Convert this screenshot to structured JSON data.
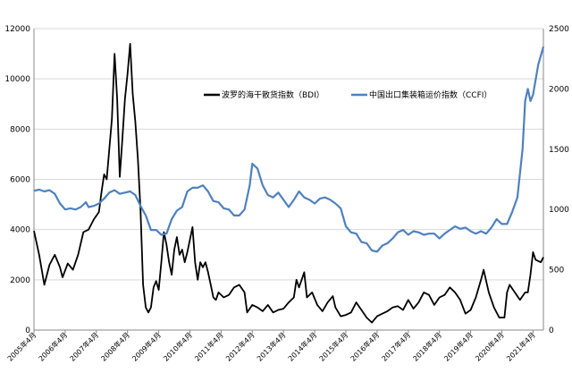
{
  "chart_data": {
    "type": "line",
    "title": "",
    "y_left": {
      "min": 0,
      "max": 12000,
      "ticks": [
        0,
        2000,
        4000,
        6000,
        8000,
        10000,
        12000
      ]
    },
    "y_right": {
      "min": 0,
      "max": 2500,
      "ticks": [
        0,
        500,
        1000,
        1500,
        2000,
        2500
      ]
    },
    "x_range": [
      "2005-04",
      "2021-08"
    ],
    "x_ticks": [
      "2005年4月",
      "2006年4月",
      "2007年4月",
      "2008年4月",
      "2009年4月",
      "2010年4月",
      "2011年4月",
      "2012年4月",
      "2013年4月",
      "2014年4月",
      "2015年4月",
      "2016年4月",
      "2017年4月",
      "2018年4月",
      "2019年4月",
      "2020年4月",
      "2021年4月"
    ],
    "legend_position": "top-center",
    "grid": "horizontal",
    "series": [
      {
        "name": "波罗的海干散货指数（BDI）",
        "axis": "left",
        "color": "#000000",
        "points": [
          [
            "2005-04",
            3950
          ],
          [
            "2005-06",
            3000
          ],
          [
            "2005-08",
            1800
          ],
          [
            "2005-10",
            2600
          ],
          [
            "2005-12",
            3000
          ],
          [
            "2006-02",
            2500
          ],
          [
            "2006-03",
            2100
          ],
          [
            "2006-05",
            2650
          ],
          [
            "2006-07",
            2400
          ],
          [
            "2006-09",
            3000
          ],
          [
            "2006-11",
            3900
          ],
          [
            "2007-01",
            4000
          ],
          [
            "2007-03",
            4400
          ],
          [
            "2007-05",
            4700
          ],
          [
            "2007-06",
            5500
          ],
          [
            "2007-07",
            6200
          ],
          [
            "2007-08",
            6000
          ],
          [
            "2007-09",
            7200
          ],
          [
            "2007-10",
            8400
          ],
          [
            "2007-11",
            11000
          ],
          [
            "2007-12",
            9200
          ],
          [
            "2008-01",
            6100
          ],
          [
            "2008-02",
            7600
          ],
          [
            "2008-03",
            9200
          ],
          [
            "2008-04",
            10200
          ],
          [
            "2008-05",
            11400
          ],
          [
            "2008-06",
            9400
          ],
          [
            "2008-07",
            8300
          ],
          [
            "2008-08",
            6800
          ],
          [
            "2008-09",
            4800
          ],
          [
            "2008-10",
            1800
          ],
          [
            "2008-11",
            900
          ],
          [
            "2008-12",
            700
          ],
          [
            "2009-01",
            900
          ],
          [
            "2009-02",
            1700
          ],
          [
            "2009-03",
            1950
          ],
          [
            "2009-04",
            1600
          ],
          [
            "2009-05",
            2700
          ],
          [
            "2009-06",
            3900
          ],
          [
            "2009-07",
            3400
          ],
          [
            "2009-08",
            2700
          ],
          [
            "2009-09",
            2200
          ],
          [
            "2009-10",
            3200
          ],
          [
            "2009-11",
            3700
          ],
          [
            "2009-12",
            3000
          ],
          [
            "2010-01",
            3200
          ],
          [
            "2010-02",
            2700
          ],
          [
            "2010-03",
            3100
          ],
          [
            "2010-04",
            3600
          ],
          [
            "2010-05",
            4100
          ],
          [
            "2010-06",
            2700
          ],
          [
            "2010-07",
            2000
          ],
          [
            "2010-08",
            2700
          ],
          [
            "2010-09",
            2500
          ],
          [
            "2010-10",
            2700
          ],
          [
            "2010-11",
            2300
          ],
          [
            "2010-12",
            1800
          ],
          [
            "2011-01",
            1300
          ],
          [
            "2011-02",
            1200
          ],
          [
            "2011-03",
            1500
          ],
          [
            "2011-05",
            1300
          ],
          [
            "2011-07",
            1400
          ],
          [
            "2011-09",
            1700
          ],
          [
            "2011-11",
            1800
          ],
          [
            "2012-01",
            1500
          ],
          [
            "2012-02",
            700
          ],
          [
            "2012-04",
            1000
          ],
          [
            "2012-06",
            900
          ],
          [
            "2012-08",
            750
          ],
          [
            "2012-10",
            1000
          ],
          [
            "2012-12",
            700
          ],
          [
            "2013-02",
            800
          ],
          [
            "2013-04",
            850
          ],
          [
            "2013-06",
            1100
          ],
          [
            "2013-08",
            1300
          ],
          [
            "2013-09",
            2000
          ],
          [
            "2013-10",
            1700
          ],
          [
            "2013-11",
            2000
          ],
          [
            "2013-12",
            2300
          ],
          [
            "2014-01",
            1300
          ],
          [
            "2014-03",
            1500
          ],
          [
            "2014-05",
            1000
          ],
          [
            "2014-07",
            750
          ],
          [
            "2014-09",
            1100
          ],
          [
            "2014-11",
            1350
          ],
          [
            "2014-12",
            900
          ],
          [
            "2015-02",
            550
          ],
          [
            "2015-04",
            600
          ],
          [
            "2015-06",
            700
          ],
          [
            "2015-08",
            1100
          ],
          [
            "2015-10",
            800
          ],
          [
            "2015-12",
            500
          ],
          [
            "2016-02",
            300
          ],
          [
            "2016-04",
            550
          ],
          [
            "2016-06",
            650
          ],
          [
            "2016-08",
            750
          ],
          [
            "2016-10",
            900
          ],
          [
            "2016-12",
            950
          ],
          [
            "2017-02",
            800
          ],
          [
            "2017-04",
            1200
          ],
          [
            "2017-06",
            850
          ],
          [
            "2017-08",
            1100
          ],
          [
            "2017-10",
            1500
          ],
          [
            "2017-12",
            1400
          ],
          [
            "2018-02",
            1000
          ],
          [
            "2018-04",
            1300
          ],
          [
            "2018-06",
            1400
          ],
          [
            "2018-08",
            1700
          ],
          [
            "2018-10",
            1500
          ],
          [
            "2018-12",
            1200
          ],
          [
            "2019-02",
            650
          ],
          [
            "2019-04",
            800
          ],
          [
            "2019-06",
            1300
          ],
          [
            "2019-08",
            2000
          ],
          [
            "2019-09",
            2400
          ],
          [
            "2019-11",
            1500
          ],
          [
            "2020-01",
            900
          ],
          [
            "2020-03",
            500
          ],
          [
            "2020-05",
            500
          ],
          [
            "2020-06",
            1500
          ],
          [
            "2020-07",
            1800
          ],
          [
            "2020-09",
            1500
          ],
          [
            "2020-11",
            1200
          ],
          [
            "2021-01",
            1500
          ],
          [
            "2021-02",
            1500
          ],
          [
            "2021-03",
            2200
          ],
          [
            "2021-04",
            3100
          ],
          [
            "2021-05",
            2800
          ],
          [
            "2021-07",
            2700
          ],
          [
            "2021-08",
            2900
          ]
        ]
      },
      {
        "name": "中国出口集装箱运价指数（CCFI）",
        "axis": "right",
        "color": "#4f81bd",
        "points": [
          [
            "2005-04",
            1155
          ],
          [
            "2005-06",
            1165
          ],
          [
            "2005-08",
            1150
          ],
          [
            "2005-10",
            1160
          ],
          [
            "2005-12",
            1130
          ],
          [
            "2006-02",
            1050
          ],
          [
            "2006-04",
            1000
          ],
          [
            "2006-06",
            1010
          ],
          [
            "2006-08",
            1000
          ],
          [
            "2006-10",
            1020
          ],
          [
            "2006-12",
            1060
          ],
          [
            "2007-01",
            1020
          ],
          [
            "2007-03",
            1030
          ],
          [
            "2007-05",
            1050
          ],
          [
            "2007-07",
            1090
          ],
          [
            "2007-09",
            1140
          ],
          [
            "2007-11",
            1160
          ],
          [
            "2008-01",
            1130
          ],
          [
            "2008-03",
            1140
          ],
          [
            "2008-05",
            1150
          ],
          [
            "2008-07",
            1120
          ],
          [
            "2008-09",
            1030
          ],
          [
            "2008-11",
            950
          ],
          [
            "2009-01",
            830
          ],
          [
            "2009-03",
            830
          ],
          [
            "2009-05",
            790
          ],
          [
            "2009-07",
            800
          ],
          [
            "2009-09",
            920
          ],
          [
            "2009-11",
            990
          ],
          [
            "2010-01",
            1020
          ],
          [
            "2010-03",
            1150
          ],
          [
            "2010-05",
            1180
          ],
          [
            "2010-07",
            1180
          ],
          [
            "2010-09",
            1200
          ],
          [
            "2010-11",
            1150
          ],
          [
            "2011-01",
            1070
          ],
          [
            "2011-03",
            1060
          ],
          [
            "2011-05",
            1010
          ],
          [
            "2011-07",
            1000
          ],
          [
            "2011-09",
            950
          ],
          [
            "2011-11",
            950
          ],
          [
            "2012-01",
            1000
          ],
          [
            "2012-03",
            1200
          ],
          [
            "2012-04",
            1380
          ],
          [
            "2012-06",
            1340
          ],
          [
            "2012-08",
            1200
          ],
          [
            "2012-10",
            1120
          ],
          [
            "2012-12",
            1100
          ],
          [
            "2013-02",
            1140
          ],
          [
            "2013-04",
            1080
          ],
          [
            "2013-06",
            1020
          ],
          [
            "2013-08",
            1080
          ],
          [
            "2013-10",
            1150
          ],
          [
            "2013-12",
            1100
          ],
          [
            "2014-02",
            1080
          ],
          [
            "2014-04",
            1050
          ],
          [
            "2014-06",
            1090
          ],
          [
            "2014-08",
            1100
          ],
          [
            "2014-10",
            1080
          ],
          [
            "2014-12",
            1050
          ],
          [
            "2015-02",
            1010
          ],
          [
            "2015-04",
            860
          ],
          [
            "2015-06",
            810
          ],
          [
            "2015-08",
            800
          ],
          [
            "2015-10",
            730
          ],
          [
            "2015-12",
            720
          ],
          [
            "2016-02",
            660
          ],
          [
            "2016-04",
            650
          ],
          [
            "2016-06",
            700
          ],
          [
            "2016-08",
            720
          ],
          [
            "2016-10",
            760
          ],
          [
            "2016-12",
            810
          ],
          [
            "2017-02",
            830
          ],
          [
            "2017-04",
            790
          ],
          [
            "2017-06",
            820
          ],
          [
            "2017-08",
            810
          ],
          [
            "2017-10",
            790
          ],
          [
            "2017-12",
            800
          ],
          [
            "2018-02",
            800
          ],
          [
            "2018-04",
            760
          ],
          [
            "2018-06",
            800
          ],
          [
            "2018-08",
            830
          ],
          [
            "2018-10",
            860
          ],
          [
            "2018-12",
            840
          ],
          [
            "2019-02",
            850
          ],
          [
            "2019-04",
            820
          ],
          [
            "2019-06",
            800
          ],
          [
            "2019-08",
            820
          ],
          [
            "2019-10",
            800
          ],
          [
            "2019-12",
            850
          ],
          [
            "2020-02",
            920
          ],
          [
            "2020-04",
            880
          ],
          [
            "2020-06",
            880
          ],
          [
            "2020-08",
            980
          ],
          [
            "2020-10",
            1100
          ],
          [
            "2020-12",
            1500
          ],
          [
            "2021-01",
            1900
          ],
          [
            "2021-02",
            2000
          ],
          [
            "2021-03",
            1900
          ],
          [
            "2021-04",
            1950
          ],
          [
            "2021-06",
            2200
          ],
          [
            "2021-08",
            2350
          ]
        ]
      }
    ]
  }
}
